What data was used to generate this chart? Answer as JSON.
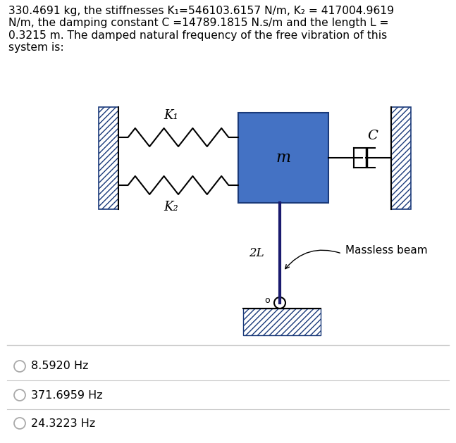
{
  "title_text": "330.4691 kg, the stiffnesses K₁=546103.6157 N/m, K₂ = 417004.9619\nN/m, the damping constant C =14789.1815 N.s/m and the length L =\n0.3215 m. The damped natural frequency of the free vibration of this\nsystem is:",
  "options": [
    "8.5920 Hz",
    "371.6959 Hz",
    "24.3223 Hz"
  ],
  "bg_color": "#ffffff",
  "text_color": "#000000",
  "mass_color": "#4472c4",
  "mass_border_color": "#1a3a7a",
  "wall_hatch_color": "#1a3a7a",
  "ground_hatch_color": "#1a3a7a",
  "mass_label": "m",
  "K1_label": "K₁",
  "K2_label": "K₂",
  "C_label": "C",
  "beam_label": "2L",
  "massless_label": "Massless beam",
  "option_separator_color": "#cccccc",
  "radio_color": "#aaaaaa"
}
